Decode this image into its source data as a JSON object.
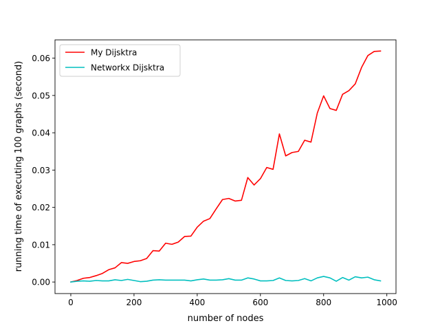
{
  "chart_data": {
    "type": "line",
    "xlabel": "number of nodes",
    "ylabel": "running time of executing 100 graphs (second)",
    "xlim": [
      -50,
      1029
    ],
    "ylim": [
      -0.0031,
      0.0649
    ],
    "xticks": [
      0,
      200,
      400,
      600,
      800,
      1000
    ],
    "xtick_labels": [
      "0",
      "200",
      "400",
      "600",
      "800",
      "1000"
    ],
    "yticks": [
      0.0,
      0.01,
      0.02,
      0.03,
      0.04,
      0.05,
      0.06
    ],
    "ytick_labels": [
      "0.00",
      "0.01",
      "0.02",
      "0.03",
      "0.04",
      "0.05",
      "0.06"
    ],
    "grid": false,
    "legend_position": "upper-left",
    "x": [
      0,
      20,
      40,
      60,
      80,
      100,
      120,
      140,
      160,
      180,
      200,
      220,
      240,
      260,
      280,
      300,
      320,
      340,
      360,
      380,
      400,
      420,
      440,
      460,
      480,
      500,
      520,
      540,
      560,
      580,
      600,
      620,
      640,
      660,
      680,
      700,
      720,
      740,
      760,
      780,
      800,
      820,
      840,
      860,
      880,
      900,
      920,
      940,
      960,
      980
    ],
    "series": [
      {
        "name": "My Dijsktra",
        "color": "#ff0000",
        "values": [
          0.0,
          0.0004,
          0.001,
          0.0012,
          0.0017,
          0.0023,
          0.0033,
          0.0038,
          0.0052,
          0.005,
          0.0055,
          0.0057,
          0.0063,
          0.0084,
          0.0083,
          0.0104,
          0.0101,
          0.0107,
          0.0122,
          0.0123,
          0.0147,
          0.0163,
          0.017,
          0.0196,
          0.0221,
          0.0224,
          0.0217,
          0.0219,
          0.028,
          0.026,
          0.0277,
          0.0307,
          0.0302,
          0.0397,
          0.0338,
          0.0347,
          0.035,
          0.038,
          0.0375,
          0.0453,
          0.0499,
          0.0465,
          0.046,
          0.0503,
          0.0513,
          0.0531,
          0.0575,
          0.0607,
          0.0618,
          0.0619
        ]
      },
      {
        "name": "Networkx Dijsktra",
        "color": "#00bfbf",
        "values": [
          0.0,
          0.0002,
          0.0003,
          0.0002,
          0.0004,
          0.0003,
          0.0003,
          0.0006,
          0.0004,
          0.0007,
          0.0004,
          0.0001,
          0.0002,
          0.0005,
          0.0006,
          0.0005,
          0.0005,
          0.0005,
          0.0005,
          0.0003,
          0.0006,
          0.0008,
          0.0005,
          0.0005,
          0.0006,
          0.0009,
          0.0005,
          0.0005,
          0.0011,
          0.0008,
          0.0003,
          0.0003,
          0.0004,
          0.0011,
          0.0004,
          0.0003,
          0.0004,
          0.0009,
          0.0003,
          0.0011,
          0.0015,
          0.0011,
          0.0002,
          0.0012,
          0.0005,
          0.0014,
          0.0011,
          0.0013,
          0.0006,
          0.0003
        ]
      }
    ]
  }
}
